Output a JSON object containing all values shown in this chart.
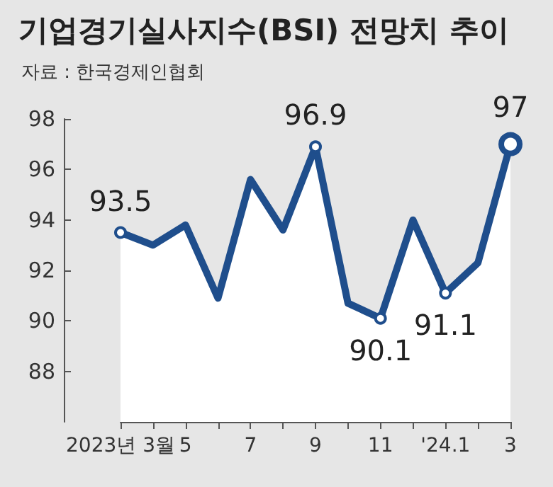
{
  "chart_data": {
    "type": "area",
    "title": "기업경기실사지수(BSI) 전망치 추이",
    "subtitle": "자료 : 한국경제인협회",
    "categories": [
      "2023년 3월",
      null,
      "5",
      null,
      "7",
      null,
      "9",
      null,
      "11",
      null,
      "'24.1",
      null,
      "3"
    ],
    "series": [
      {
        "color": "#1f4e8c",
        "values": [
          93.5,
          93.0,
          93.8,
          90.9,
          95.6,
          93.6,
          96.9,
          90.7,
          90.1,
          94.0,
          91.1,
          92.3,
          97
        ],
        "value_labels": [
          "93.5",
          null,
          null,
          null,
          null,
          null,
          "96.9",
          null,
          "90.1",
          null,
          "91.1",
          null,
          "97"
        ]
      }
    ],
    "ylim": [
      86,
      98
    ],
    "yticks": [
      88,
      90,
      92,
      94,
      96,
      98
    ],
    "grid": false,
    "line_style": "solid"
  }
}
